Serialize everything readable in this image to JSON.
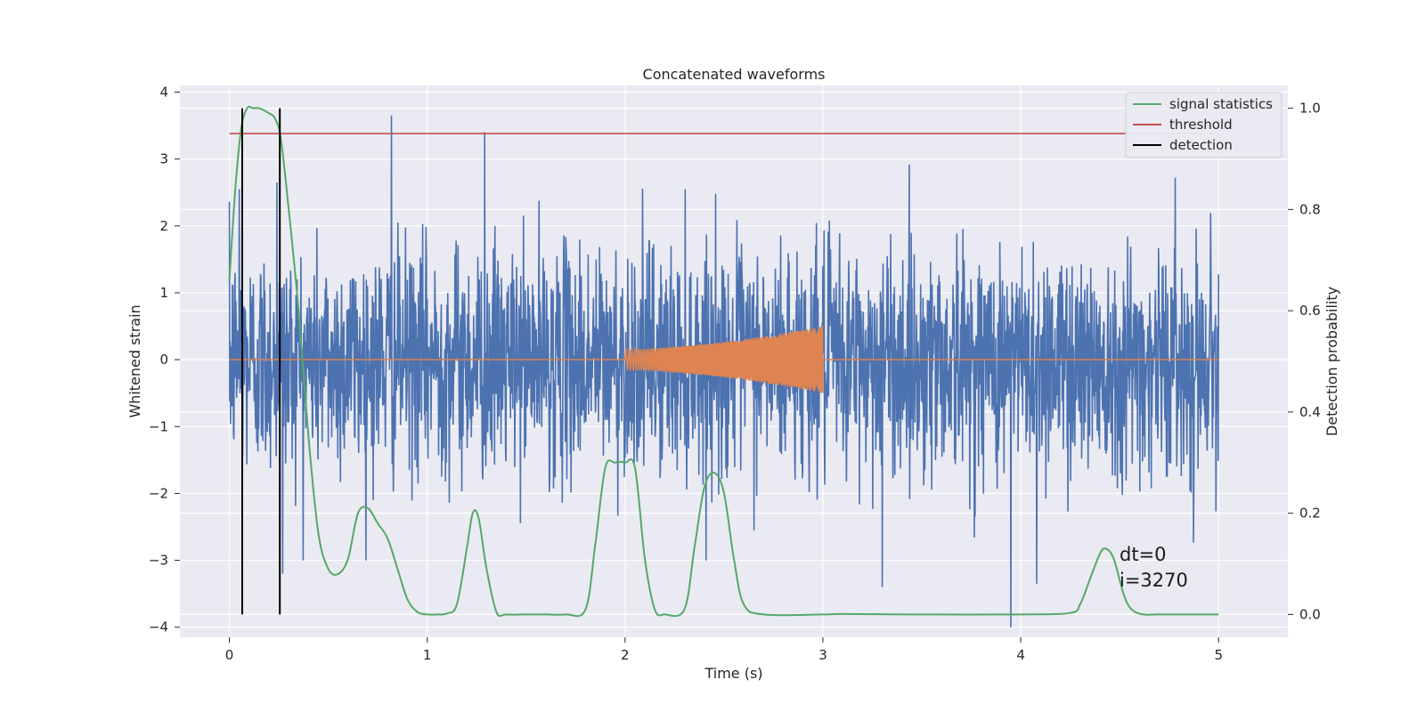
{
  "chart_data": {
    "type": "line",
    "title": "Concatenated waveforms",
    "xlabel": "Time (s)",
    "ylabel_left": "Whitened strain",
    "ylabel_right": "Detection probability",
    "xlim": [
      -0.25,
      5.35
    ],
    "ylim_left": [
      -4.15,
      4.1
    ],
    "ylim_right": [
      -0.045,
      1.045
    ],
    "xticks": [
      0,
      1,
      2,
      3,
      4,
      5
    ],
    "yticks_left": [
      -4,
      -3,
      -2,
      -1,
      0,
      1,
      2,
      3,
      4
    ],
    "yticks_right": [
      0.0,
      0.2,
      0.4,
      0.6,
      0.8,
      1.0
    ],
    "xtick_labels": [
      "0",
      "1",
      "2",
      "3",
      "4",
      "5"
    ],
    "ytick_labels_left": [
      "−4",
      "−3",
      "−2",
      "−1",
      "0",
      "1",
      "2",
      "3",
      "4"
    ],
    "ytick_labels_right": [
      "0.0",
      "0.2",
      "0.4",
      "0.6",
      "0.8",
      "1.0"
    ],
    "grid": true,
    "legend_position": "top-right",
    "annotation": [
      "dt=0",
      "i=3270"
    ],
    "series": [
      {
        "name": "",
        "axis": "left",
        "color": "#4c72b0",
        "description": "whitened strain noise",
        "x_range": [
          0,
          5
        ],
        "envelope_typical": [
          -2.2,
          2.2
        ],
        "spikes": [
          {
            "x": 0.82,
            "y": 3.65
          },
          {
            "x": 1.29,
            "y": 3.4
          },
          {
            "x": 0.27,
            "y": -3.2
          },
          {
            "x": 3.95,
            "y": -4.0
          },
          {
            "x": 4.08,
            "y": -3.35
          },
          {
            "x": 3.3,
            "y": -3.4
          },
          {
            "x": 0.05,
            "y": 2.55
          },
          {
            "x": 0.24,
            "y": 2.65
          }
        ]
      },
      {
        "name": "",
        "axis": "left",
        "color": "#dd8452",
        "description": "injected chirp signal",
        "baseline": 0,
        "chirp_start": 2.0,
        "chirp_end": 3.0,
        "amplitude_start": 0.15,
        "amplitude_end": 0.5
      },
      {
        "name": "signal statistics",
        "axis": "right",
        "color": "#55a868",
        "x": [
          0.0,
          0.03,
          0.06,
          0.09,
          0.12,
          0.15,
          0.2,
          0.23,
          0.26,
          0.3,
          0.35,
          0.4,
          0.45,
          0.5,
          0.55,
          0.6,
          0.65,
          0.7,
          0.75,
          0.8,
          0.85,
          0.9,
          0.95,
          1.0,
          1.05,
          1.1,
          1.15,
          1.2,
          1.23,
          1.26,
          1.3,
          1.35,
          1.4,
          1.5,
          1.6,
          1.7,
          1.8,
          1.85,
          1.9,
          1.95,
          2.0,
          2.05,
          2.1,
          2.15,
          2.2,
          2.3,
          2.35,
          2.4,
          2.45,
          2.5,
          2.55,
          2.6,
          2.7,
          3.0,
          3.1,
          3.5,
          4.0,
          4.25,
          4.3,
          4.35,
          4.4,
          4.43,
          4.47,
          4.52,
          4.56,
          4.62,
          4.7,
          5.0
        ],
        "values": [
          0.66,
          0.84,
          0.96,
          1.0,
          1.0,
          1.0,
          0.99,
          0.98,
          0.94,
          0.8,
          0.6,
          0.35,
          0.16,
          0.09,
          0.08,
          0.11,
          0.2,
          0.21,
          0.18,
          0.15,
          0.09,
          0.03,
          0.005,
          0.0,
          0.0,
          0.002,
          0.02,
          0.13,
          0.2,
          0.19,
          0.09,
          0.005,
          0.0,
          0.0,
          0.0,
          0.0,
          0.01,
          0.14,
          0.29,
          0.3,
          0.3,
          0.29,
          0.11,
          0.01,
          0.0,
          0.01,
          0.13,
          0.25,
          0.28,
          0.24,
          0.11,
          0.02,
          0.0,
          0.0,
          0.001,
          0.0,
          0.0,
          0.003,
          0.02,
          0.07,
          0.12,
          0.13,
          0.11,
          0.04,
          0.01,
          0.0,
          0.0,
          0.0
        ]
      },
      {
        "name": "threshold",
        "axis": "right",
        "color": "#c44e52",
        "x": [
          0,
          5
        ],
        "values": [
          0.95,
          0.95
        ]
      },
      {
        "name": "detection",
        "axis": "right",
        "color": "#000000",
        "type": "vline",
        "x": [
          0.065,
          0.255
        ],
        "range": [
          0.0,
          1.0
        ]
      }
    ]
  }
}
